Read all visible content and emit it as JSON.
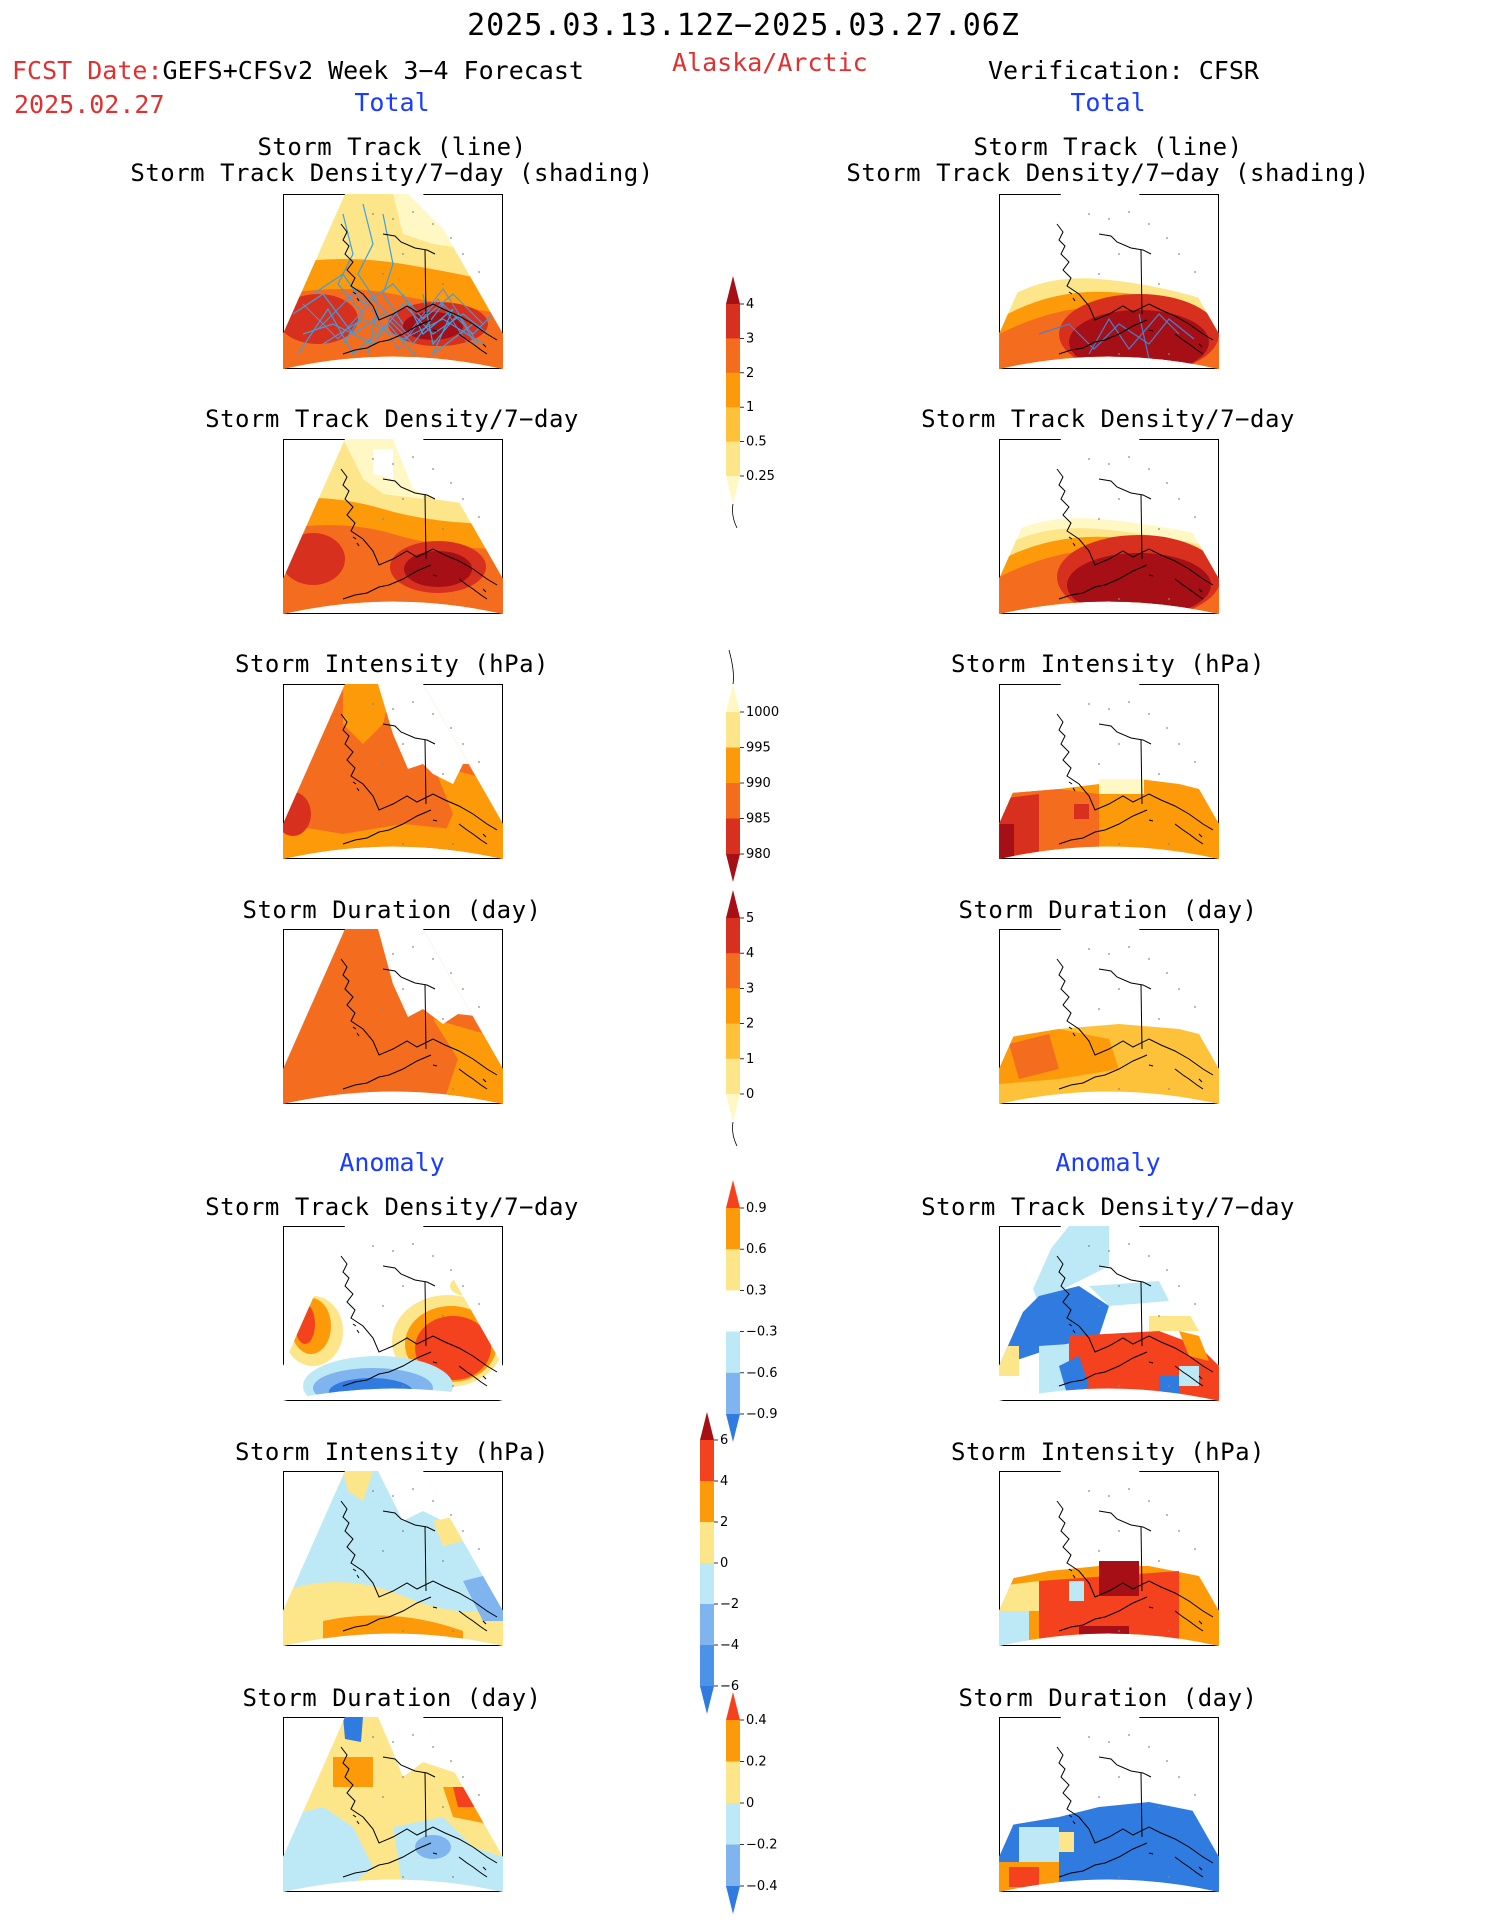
{
  "header": {
    "date_range": "2025.03.13.12Z−2025.03.27.06Z",
    "fcst_label": "FCST Date:",
    "forecast_name": "GEFS+CFSv2 Week 3−4 Forecast",
    "fcst_date": "2025.02.27",
    "region": "Alaska/Arctic",
    "verification": "Verification: CFSR"
  },
  "left": {
    "total_label": "Total",
    "anomaly_label": "Anomaly",
    "titles": {
      "track_line": "Storm Track (line)",
      "track_shading": "Storm Track Density/7−day (shading)",
      "density": "Storm Track Density/7−day",
      "intensity": "Storm Intensity (hPa)",
      "duration": "Storm Duration (day)",
      "anom_density": "Storm Track Density/7−day",
      "anom_intensity": "Storm Intensity (hPa)",
      "anom_duration": "Storm Duration (day)"
    }
  },
  "right": {
    "total_label": "Total",
    "anomaly_label": "Anomaly",
    "titles": {
      "track_line": "Storm Track (line)",
      "track_shading": "Storm Track Density/7−day (shading)",
      "density": "Storm Track Density/7−day",
      "intensity": "Storm Intensity (hPa)",
      "duration": "Storm Duration (day)",
      "anom_density": "Storm Track Density/7−day",
      "anom_intensity": "Storm Intensity (hPa)",
      "anom_duration": "Storm Duration (day)"
    }
  },
  "colorbars": [
    {
      "id": "density",
      "labels": [
        "4",
        "3",
        "2",
        "1",
        "0.5",
        "0.25"
      ],
      "colors": [
        "#a50f15",
        "#d7301f",
        "#f46d1e",
        "#fd9a0a",
        "#fdc23a",
        "#fde68a",
        "#fff7c4"
      ]
    },
    {
      "id": "intensity",
      "labels": [
        "1000",
        "995",
        "990",
        "985",
        "980"
      ],
      "colors": [
        "#fff7c4",
        "#fde68a",
        "#fd9a0a",
        "#f46d1e",
        "#d7301f",
        "#a50f15"
      ]
    },
    {
      "id": "duration",
      "labels": [
        "5",
        "4",
        "3",
        "2",
        "1",
        "0"
      ],
      "colors": [
        "#a50f15",
        "#d7301f",
        "#f46d1e",
        "#fd9a0a",
        "#fdc23a",
        "#fde68a",
        "#fff7c4"
      ]
    },
    {
      "id": "anom_density",
      "labels": [
        "0.9",
        "0.6",
        "0.3",
        "−0.3",
        "−0.6",
        "−0.9"
      ],
      "colors": [
        "#f4411e",
        "#fd9a0a",
        "#fde68a",
        "#ffffff",
        "#bde9f7",
        "#7fb4ee",
        "#2f7be0"
      ]
    },
    {
      "id": "anom_intensity",
      "labels": [
        "6",
        "4",
        "2",
        "0",
        "−2",
        "−4",
        "−6"
      ],
      "colors": [
        "#a50f15",
        "#f4411e",
        "#fd9a0a",
        "#fde68a",
        "#bde9f7",
        "#7fb4ee",
        "#4c93e8",
        "#2f7be0"
      ]
    },
    {
      "id": "anom_duration",
      "labels": [
        "0.4",
        "0.2",
        "0",
        "−0.2",
        "−0.4"
      ],
      "colors": [
        "#f4411e",
        "#fd9a0a",
        "#fde68a",
        "#bde9f7",
        "#7fb4ee",
        "#2f7be0"
      ]
    }
  ],
  "palette": {
    "dark_red": "#a50f15",
    "red": "#d7301f",
    "red_orange": "#f46d1e",
    "orange": "#fd9a0a",
    "light_orange": "#fdc23a",
    "yellow": "#fde68a",
    "pale_yellow": "#fff7c4",
    "light_blue": "#bde9f7",
    "mid_blue": "#7fb4ee",
    "blue": "#2f7be0",
    "track_line": "#3aa0e0"
  }
}
